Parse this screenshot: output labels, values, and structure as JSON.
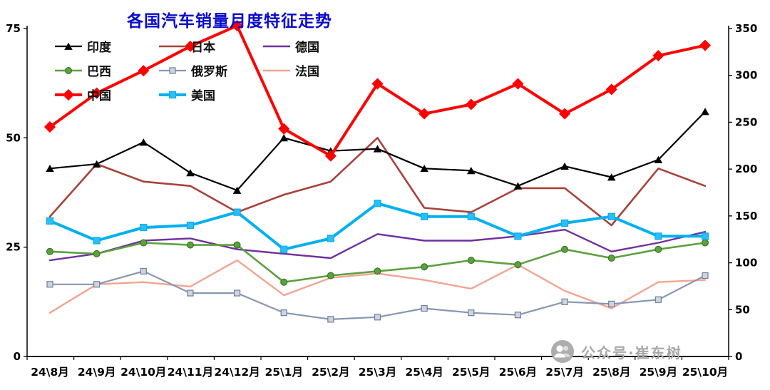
{
  "chart_data": {
    "type": "line",
    "title": "各国汽车销量月度特征走势",
    "watermark": "公众号·崔东树",
    "categories": [
      "24\\8月",
      "24\\9月",
      "24\\10月",
      "24\\11月",
      "24\\12月",
      "25\\1月",
      "25\\2月",
      "25\\3月",
      "25\\4月",
      "25\\5月",
      "25\\6月",
      "25\\7月",
      "25\\8月",
      "25\\9月",
      "25\\10月"
    ],
    "left_axis": {
      "min": 0,
      "max": 75,
      "ticks": [
        0,
        25,
        50,
        75
      ]
    },
    "right_axis": {
      "min": 0,
      "max": 350,
      "ticks": [
        0,
        50,
        100,
        150,
        200,
        250,
        300,
        350
      ]
    },
    "legend_position": "top-left",
    "grid": false,
    "series": [
      {
        "name": "印度",
        "axis": "left",
        "color": "#000000",
        "width": 2.2,
        "marker": "triangle",
        "marker_size": 9,
        "marker_fill": "#000000",
        "marker_stroke": "#000000",
        "values": [
          43,
          44,
          49,
          42,
          38,
          50,
          47,
          47.5,
          43,
          42.5,
          39,
          43.5,
          41,
          45,
          56
        ]
      },
      {
        "name": "日本",
        "axis": "left",
        "color": "#A8423A",
        "width": 2.6,
        "marker": "none",
        "marker_size": 0,
        "marker_fill": "#A8423A",
        "marker_stroke": "#A8423A",
        "values": [
          32,
          44,
          40,
          39,
          33,
          37,
          40,
          50,
          34,
          33,
          38.5,
          38.5,
          30,
          43,
          39
        ]
      },
      {
        "name": "德国",
        "axis": "left",
        "color": "#7030A0",
        "width": 2.4,
        "marker": "none",
        "marker_size": 0,
        "marker_fill": "#7030A0",
        "marker_stroke": "#7030A0",
        "values": [
          22,
          23.5,
          26.5,
          27,
          24.5,
          23.5,
          22.5,
          28,
          26.5,
          26.5,
          27.5,
          29,
          24,
          26,
          28.5
        ]
      },
      {
        "name": "巴西",
        "axis": "left",
        "color": "#5CA13F",
        "width": 2.6,
        "marker": "circle",
        "marker_size": 9,
        "marker_fill": "#5CA13F",
        "marker_stroke": "#2F6A1F",
        "values": [
          24,
          23.5,
          26,
          25.5,
          25.5,
          17,
          18.5,
          19.5,
          20.5,
          22,
          21,
          24.5,
          22.5,
          24.5,
          26
        ]
      },
      {
        "name": "俄罗斯",
        "axis": "left",
        "color": "#8797B2",
        "width": 2.2,
        "marker": "square",
        "marker_size": 8,
        "marker_fill": "#CDD5E0",
        "marker_stroke": "#6E7F99",
        "values": [
          16.5,
          16.5,
          19.5,
          14.5,
          14.5,
          10,
          8.5,
          9,
          11,
          10,
          9.5,
          12.5,
          12,
          13,
          18.5
        ]
      },
      {
        "name": "法国",
        "axis": "left",
        "color": "#F2A590",
        "width": 2.4,
        "marker": "none",
        "marker_size": 0,
        "marker_fill": "#F2A590",
        "marker_stroke": "#F2A590",
        "values": [
          10,
          16.5,
          17,
          16,
          22,
          14,
          18,
          19,
          17.5,
          15.5,
          21,
          15,
          11,
          17,
          17.5
        ]
      },
      {
        "name": "中国",
        "axis": "right",
        "color": "#FF0000",
        "width": 4,
        "marker": "diamond",
        "marker_size": 13,
        "marker_fill": "#FF0000",
        "marker_stroke": "#FF0000",
        "values": [
          245,
          281,
          305,
          331,
          353,
          243,
          214,
          291,
          259,
          269,
          291,
          259,
          285,
          321,
          332
        ]
      },
      {
        "name": "美国",
        "axis": "left",
        "color": "#00B0F0",
        "width": 4,
        "marker": "square",
        "marker_size": 9,
        "marker_fill": "#2FBDF2",
        "marker_stroke": "#00B0F0",
        "values": [
          31,
          26.5,
          29.5,
          30,
          33,
          24.5,
          27,
          35,
          32,
          32,
          27.5,
          30.5,
          32,
          27.5,
          27.5
        ]
      }
    ]
  }
}
